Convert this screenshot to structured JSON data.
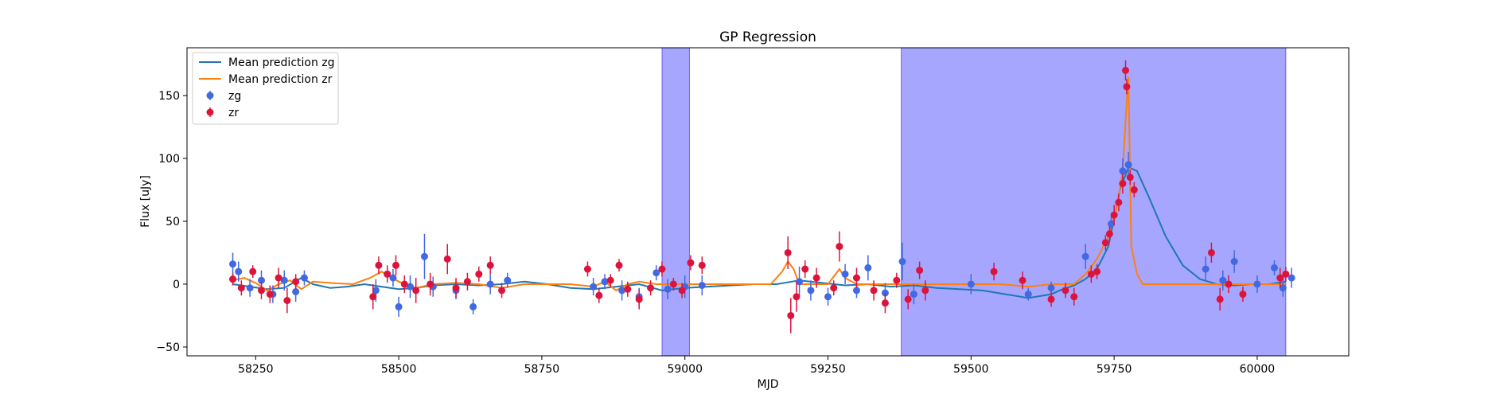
{
  "chart_data": {
    "type": "scatter",
    "title": "GP Regression",
    "xlabel": "MJD",
    "ylabel": "Flux [uJy]",
    "xlim": [
      58130,
      60160
    ],
    "ylim": [
      -57,
      188
    ],
    "x_ticks": [
      58250,
      58500,
      58750,
      59000,
      59250,
      59500,
      59750,
      60000
    ],
    "y_ticks": [
      -50,
      0,
      50,
      100,
      150
    ],
    "grid": false,
    "legend_position": "top-left",
    "shaded_regions": [
      {
        "x0": 58960,
        "x1": 59008,
        "color": "#0000ff",
        "opacity": 0.35
      },
      {
        "x0": 59378,
        "x1": 60050,
        "color": "#0000ff",
        "opacity": 0.35
      }
    ],
    "series": [
      {
        "name": "Mean prediction zg",
        "kind": "line",
        "color": "#1f77b4",
        "x": [
          58210,
          58240,
          58270,
          58300,
          58330,
          58350,
          58380,
          58410,
          58440,
          58470,
          58500,
          58530,
          58560,
          58600,
          58640,
          58680,
          58720,
          58760,
          58800,
          58840,
          58880,
          58920,
          58960,
          59000,
          59040,
          59080,
          59120,
          59160,
          59200,
          59240,
          59280,
          59320,
          59360,
          59400,
          59440,
          59480,
          59520,
          59560,
          59600,
          59640,
          59660,
          59680,
          59700,
          59720,
          59740,
          59760,
          59775,
          59790,
          59810,
          59840,
          59870,
          59900,
          59930,
          59960,
          59990,
          60020,
          60050
        ],
        "y": [
          0,
          -2,
          -4,
          -3,
          5,
          0,
          -3,
          -2,
          0,
          -2,
          -4,
          -3,
          -1,
          0,
          -1,
          0,
          2,
          0,
          -3,
          -4,
          -2,
          0,
          -5,
          -3,
          -2,
          -1,
          0,
          0,
          3,
          1,
          -1,
          0,
          -2,
          -1,
          -3,
          -4,
          -5,
          -8,
          -11,
          -8,
          -4,
          -1,
          4,
          12,
          30,
          75,
          93,
          90,
          70,
          38,
          15,
          4,
          0,
          -1,
          0,
          0,
          2
        ]
      },
      {
        "name": "Mean prediction zr",
        "kind": "line",
        "color": "#ff7f0e",
        "x": [
          58210,
          58230,
          58250,
          58270,
          58290,
          58310,
          58330,
          58350,
          58380,
          58420,
          58450,
          58470,
          58500,
          58530,
          58560,
          58600,
          58640,
          58680,
          58720,
          58760,
          58800,
          58840,
          58860,
          58880,
          58900,
          58920,
          58950,
          58980,
          59000,
          59050,
          59100,
          59150,
          59170,
          59180,
          59190,
          59200,
          59250,
          59270,
          59280,
          59300,
          59350,
          59400,
          59450,
          59500,
          59550,
          59600,
          59640,
          59680,
          59700,
          59720,
          59740,
          59755,
          59765,
          59770,
          59775,
          59780,
          59790,
          59800,
          59850,
          59900,
          59950,
          60000,
          60050
        ],
        "y": [
          3,
          5,
          1,
          -5,
          0,
          3,
          -4,
          2,
          1,
          0,
          5,
          10,
          2,
          -3,
          0,
          1,
          0,
          -3,
          0,
          0,
          0,
          -2,
          2,
          -5,
          0,
          2,
          0,
          0,
          0,
          0,
          0,
          0,
          10,
          18,
          12,
          0,
          0,
          12,
          5,
          0,
          0,
          0,
          0,
          0,
          0,
          -2,
          0,
          0,
          8,
          20,
          38,
          62,
          90,
          130,
          165,
          30,
          8,
          0,
          0,
          0,
          0,
          0,
          0
        ]
      },
      {
        "name": "zg",
        "kind": "errorbar",
        "color": "#4169e1",
        "points": [
          [
            58210,
            16,
            9
          ],
          [
            58220,
            10,
            8
          ],
          [
            58240,
            -3,
            7
          ],
          [
            58260,
            3,
            8
          ],
          [
            58280,
            -8,
            7
          ],
          [
            58300,
            3,
            8
          ],
          [
            58320,
            -6,
            8
          ],
          [
            58335,
            5,
            6
          ],
          [
            58460,
            -5,
            9
          ],
          [
            58480,
            8,
            7
          ],
          [
            58490,
            5,
            7
          ],
          [
            58500,
            -18,
            8
          ],
          [
            58520,
            -2,
            9
          ],
          [
            58545,
            22,
            18
          ],
          [
            58560,
            -2,
            8
          ],
          [
            58600,
            -5,
            7
          ],
          [
            58630,
            -18,
            6
          ],
          [
            58660,
            0,
            8
          ],
          [
            58690,
            3,
            6
          ],
          [
            58840,
            -2,
            7
          ],
          [
            58860,
            2,
            6
          ],
          [
            58890,
            -5,
            8
          ],
          [
            58920,
            -10,
            7
          ],
          [
            58950,
            9,
            6
          ],
          [
            58970,
            -4,
            8
          ],
          [
            59000,
            -2,
            9
          ],
          [
            59030,
            -1,
            8
          ],
          [
            59200,
            2,
            12
          ],
          [
            59220,
            -5,
            8
          ],
          [
            59250,
            -10,
            7
          ],
          [
            59280,
            8,
            8
          ],
          [
            59300,
            -5,
            6
          ],
          [
            59320,
            13,
            10
          ],
          [
            59350,
            -7,
            8
          ],
          [
            59380,
            18,
            15
          ],
          [
            59400,
            -8,
            8
          ],
          [
            59500,
            0,
            8
          ],
          [
            59600,
            -8,
            5
          ],
          [
            59640,
            -3,
            5
          ],
          [
            59700,
            22,
            10
          ],
          [
            59745,
            48,
            7
          ],
          [
            59765,
            90,
            10
          ],
          [
            59775,
            95,
            10
          ],
          [
            59910,
            12,
            10
          ],
          [
            59940,
            3,
            8
          ],
          [
            59960,
            18,
            9
          ],
          [
            60000,
            0,
            7
          ],
          [
            60030,
            13,
            6
          ],
          [
            60045,
            -3,
            7
          ],
          [
            60060,
            5,
            8
          ]
        ]
      },
      {
        "name": "zr",
        "kind": "errorbar",
        "color": "#dc143c",
        "points": [
          [
            58210,
            4,
            5
          ],
          [
            58225,
            -3,
            6
          ],
          [
            58245,
            10,
            5
          ],
          [
            58260,
            -5,
            7
          ],
          [
            58275,
            -8,
            7
          ],
          [
            58290,
            5,
            8
          ],
          [
            58305,
            -13,
            10
          ],
          [
            58320,
            2,
            6
          ],
          [
            58455,
            -10,
            10
          ],
          [
            58465,
            15,
            7
          ],
          [
            58480,
            8,
            6
          ],
          [
            58495,
            15,
            8
          ],
          [
            58510,
            0,
            7
          ],
          [
            58530,
            -5,
            10
          ],
          [
            58555,
            0,
            9
          ],
          [
            58585,
            20,
            12
          ],
          [
            58600,
            -3,
            8
          ],
          [
            58620,
            2,
            7
          ],
          [
            58640,
            8,
            6
          ],
          [
            58660,
            15,
            7
          ],
          [
            58680,
            -5,
            6
          ],
          [
            58830,
            12,
            6
          ],
          [
            58850,
            -9,
            6
          ],
          [
            58870,
            3,
            5
          ],
          [
            58885,
            15,
            5
          ],
          [
            58900,
            -4,
            6
          ],
          [
            58920,
            -12,
            8
          ],
          [
            58940,
            -3,
            6
          ],
          [
            58960,
            12,
            6
          ],
          [
            58980,
            0,
            5
          ],
          [
            58995,
            -5,
            6
          ],
          [
            59010,
            17,
            6
          ],
          [
            59030,
            15,
            7
          ],
          [
            59180,
            25,
            13
          ],
          [
            59185,
            -25,
            14
          ],
          [
            59195,
            -10,
            12
          ],
          [
            59210,
            12,
            7
          ],
          [
            59230,
            5,
            8
          ],
          [
            59260,
            -3,
            6
          ],
          [
            59270,
            30,
            12
          ],
          [
            59300,
            5,
            8
          ],
          [
            59330,
            -5,
            8
          ],
          [
            59350,
            -15,
            8
          ],
          [
            59370,
            3,
            6
          ],
          [
            59390,
            -12,
            8
          ],
          [
            59410,
            11,
            7
          ],
          [
            59420,
            -5,
            8
          ],
          [
            59540,
            10,
            7
          ],
          [
            59590,
            3,
            7
          ],
          [
            59640,
            -12,
            6
          ],
          [
            59665,
            -5,
            6
          ],
          [
            59680,
            -10,
            7
          ],
          [
            59710,
            8,
            7
          ],
          [
            59720,
            10,
            6
          ],
          [
            59735,
            33,
            6
          ],
          [
            59742,
            40,
            6
          ],
          [
            59750,
            55,
            8
          ],
          [
            59758,
            65,
            7
          ],
          [
            59765,
            80,
            8
          ],
          [
            59770,
            170,
            8
          ],
          [
            59772,
            157,
            6
          ],
          [
            59778,
            85,
            6
          ],
          [
            59785,
            75,
            6
          ],
          [
            59920,
            25,
            8
          ],
          [
            59935,
            -12,
            9
          ],
          [
            59950,
            0,
            7
          ],
          [
            59975,
            -8,
            6
          ],
          [
            60040,
            5,
            8
          ],
          [
            60050,
            8,
            6
          ]
        ]
      }
    ]
  }
}
